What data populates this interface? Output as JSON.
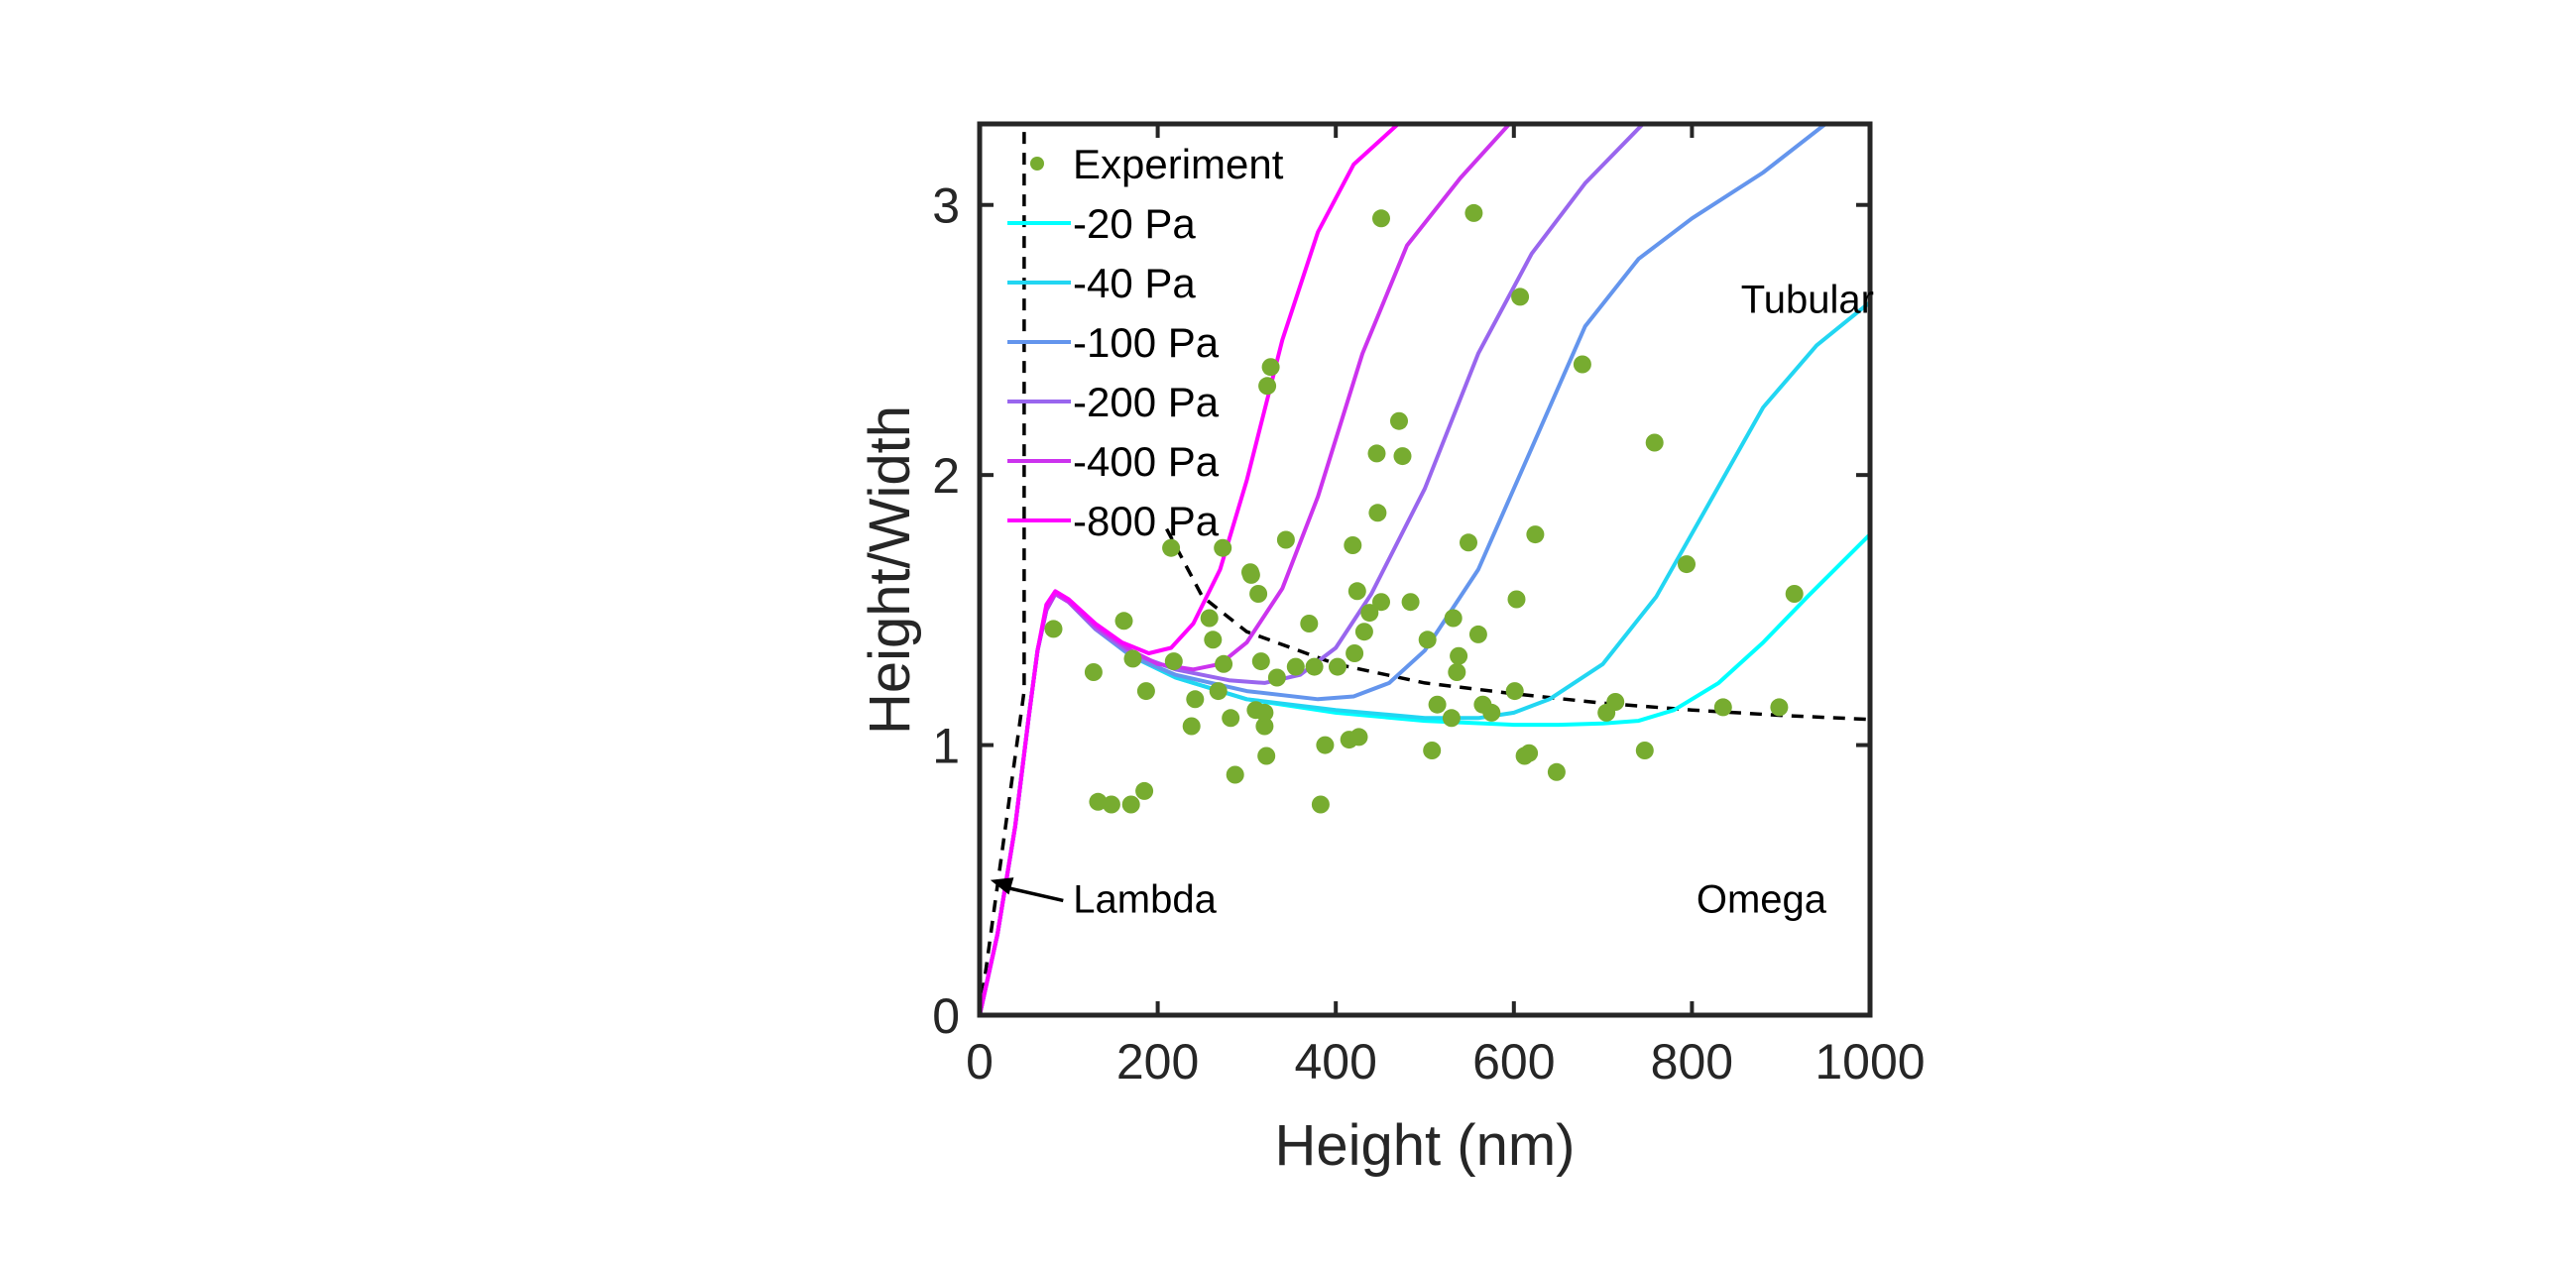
{
  "chart_data": {
    "type": "scatter",
    "xlabel": "Height (nm)",
    "ylabel": "Height/Width",
    "xlim": [
      0,
      1000
    ],
    "ylim": [
      0,
      3.3
    ],
    "xticks": [
      0,
      200,
      400,
      600,
      800,
      1000
    ],
    "xtick_labels": [
      "0",
      "200",
      "400",
      "600",
      "800",
      "1000"
    ],
    "yticks": [
      0,
      1,
      2,
      3
    ],
    "ytick_labels": [
      "0",
      "1",
      "2",
      "3"
    ],
    "grid": false,
    "legend": {
      "position": "top-left",
      "entries": [
        "Experiment",
        "-20 Pa",
        "-40 Pa",
        "-100 Pa",
        "-200 Pa",
        "-400 Pa",
        "-800 Pa"
      ]
    },
    "series": [
      {
        "name": "Experiment",
        "kind": "scatter",
        "color": "#77ac30",
        "points": [
          [
            83,
            1.43
          ],
          [
            128,
            1.27
          ],
          [
            133,
            0.79
          ],
          [
            148,
            0.78
          ],
          [
            162,
            1.46
          ],
          [
            170,
            0.78
          ],
          [
            172,
            1.32
          ],
          [
            185,
            0.83
          ],
          [
            187,
            1.2
          ],
          [
            215,
            1.73
          ],
          [
            218,
            1.31
          ],
          [
            238,
            1.07
          ],
          [
            242,
            1.17
          ],
          [
            258,
            1.47
          ],
          [
            262,
            1.39
          ],
          [
            268,
            1.2
          ],
          [
            273,
            1.73
          ],
          [
            274,
            1.3
          ],
          [
            282,
            1.1
          ],
          [
            287,
            0.89
          ],
          [
            304,
            1.64
          ],
          [
            305,
            1.63
          ],
          [
            310,
            1.13
          ],
          [
            313,
            1.56
          ],
          [
            316,
            1.31
          ],
          [
            320,
            1.07
          ],
          [
            320,
            1.12
          ],
          [
            322,
            0.96
          ],
          [
            323,
            2.33
          ],
          [
            327,
            2.4
          ],
          [
            334,
            1.25
          ],
          [
            344,
            1.76
          ],
          [
            355,
            1.29
          ],
          [
            370,
            1.45
          ],
          [
            376,
            1.29
          ],
          [
            383,
            0.78
          ],
          [
            388,
            1.0
          ],
          [
            402,
            1.29
          ],
          [
            415,
            1.02
          ],
          [
            419,
            1.74
          ],
          [
            421,
            1.34
          ],
          [
            424,
            1.57
          ],
          [
            426,
            1.03
          ],
          [
            432,
            1.42
          ],
          [
            438,
            1.49
          ],
          [
            446,
            2.08
          ],
          [
            447,
            1.86
          ],
          [
            451,
            1.53
          ],
          [
            451,
            2.95
          ],
          [
            471,
            2.2
          ],
          [
            475,
            2.07
          ],
          [
            484,
            1.53
          ],
          [
            503,
            1.39
          ],
          [
            508,
            0.98
          ],
          [
            514,
            1.15
          ],
          [
            530,
            1.1
          ],
          [
            532,
            1.47
          ],
          [
            536,
            1.27
          ],
          [
            538,
            1.33
          ],
          [
            549,
            1.75
          ],
          [
            555,
            2.97
          ],
          [
            560,
            1.41
          ],
          [
            565,
            1.15
          ],
          [
            575,
            1.12
          ],
          [
            601,
            1.2
          ],
          [
            603,
            1.54
          ],
          [
            607,
            2.66
          ],
          [
            612,
            0.96
          ],
          [
            617,
            0.97
          ],
          [
            624,
            1.78
          ],
          [
            648,
            0.9
          ],
          [
            677,
            2.41
          ],
          [
            704,
            1.12
          ],
          [
            714,
            1.16
          ],
          [
            747,
            0.98
          ],
          [
            758,
            2.12
          ],
          [
            794,
            1.67
          ],
          [
            835,
            1.14
          ],
          [
            898,
            1.14
          ],
          [
            915,
            1.56
          ]
        ]
      },
      {
        "name": "-20 Pa",
        "kind": "line",
        "color": "#00ffff",
        "points": [
          [
            0,
            0
          ],
          [
            20,
            0.3
          ],
          [
            40,
            0.7
          ],
          [
            55,
            1.1
          ],
          [
            65,
            1.35
          ],
          [
            75,
            1.5
          ],
          [
            85,
            1.56
          ],
          [
            100,
            1.53
          ],
          [
            130,
            1.43
          ],
          [
            170,
            1.33
          ],
          [
            220,
            1.25
          ],
          [
            300,
            1.17
          ],
          [
            400,
            1.12
          ],
          [
            500,
            1.09
          ],
          [
            600,
            1.075
          ],
          [
            650,
            1.075
          ],
          [
            700,
            1.08
          ],
          [
            740,
            1.09
          ],
          [
            780,
            1.13
          ],
          [
            830,
            1.23
          ],
          [
            880,
            1.38
          ],
          [
            930,
            1.55
          ],
          [
            1000,
            1.78
          ]
        ]
      },
      {
        "name": "-40 Pa",
        "kind": "line",
        "color": "#22d6f2",
        "points": [
          [
            0,
            0
          ],
          [
            20,
            0.3
          ],
          [
            40,
            0.7
          ],
          [
            55,
            1.1
          ],
          [
            65,
            1.35
          ],
          [
            75,
            1.5
          ],
          [
            85,
            1.56
          ],
          [
            100,
            1.53
          ],
          [
            130,
            1.43
          ],
          [
            170,
            1.33
          ],
          [
            220,
            1.25
          ],
          [
            300,
            1.17
          ],
          [
            400,
            1.13
          ],
          [
            500,
            1.1
          ],
          [
            560,
            1.1
          ],
          [
            600,
            1.12
          ],
          [
            640,
            1.17
          ],
          [
            700,
            1.3
          ],
          [
            760,
            1.55
          ],
          [
            820,
            1.9
          ],
          [
            880,
            2.25
          ],
          [
            940,
            2.48
          ],
          [
            1000,
            2.64
          ]
        ]
      },
      {
        "name": "-100 Pa",
        "kind": "line",
        "color": "#6495ed",
        "points": [
          [
            0,
            0
          ],
          [
            20,
            0.3
          ],
          [
            40,
            0.7
          ],
          [
            55,
            1.1
          ],
          [
            65,
            1.35
          ],
          [
            75,
            1.5
          ],
          [
            85,
            1.56
          ],
          [
            100,
            1.53
          ],
          [
            130,
            1.43
          ],
          [
            170,
            1.33
          ],
          [
            220,
            1.26
          ],
          [
            300,
            1.2
          ],
          [
            380,
            1.17
          ],
          [
            420,
            1.18
          ],
          [
            460,
            1.23
          ],
          [
            500,
            1.35
          ],
          [
            560,
            1.65
          ],
          [
            620,
            2.1
          ],
          [
            680,
            2.55
          ],
          [
            740,
            2.8
          ],
          [
            800,
            2.95
          ],
          [
            880,
            3.12
          ],
          [
            950,
            3.3
          ]
        ]
      },
      {
        "name": "-200 Pa",
        "kind": "line",
        "color": "#9966ee",
        "points": [
          [
            0,
            0
          ],
          [
            20,
            0.3
          ],
          [
            40,
            0.7
          ],
          [
            55,
            1.1
          ],
          [
            65,
            1.35
          ],
          [
            75,
            1.5
          ],
          [
            85,
            1.56
          ],
          [
            100,
            1.53
          ],
          [
            130,
            1.43
          ],
          [
            170,
            1.34
          ],
          [
            220,
            1.28
          ],
          [
            280,
            1.24
          ],
          [
            320,
            1.23
          ],
          [
            360,
            1.26
          ],
          [
            400,
            1.36
          ],
          [
            440,
            1.56
          ],
          [
            500,
            1.95
          ],
          [
            560,
            2.45
          ],
          [
            620,
            2.82
          ],
          [
            680,
            3.08
          ],
          [
            745,
            3.3
          ]
        ]
      },
      {
        "name": "-400 Pa",
        "kind": "line",
        "color": "#cc33ee",
        "points": [
          [
            0,
            0
          ],
          [
            20,
            0.3
          ],
          [
            40,
            0.7
          ],
          [
            55,
            1.1
          ],
          [
            65,
            1.35
          ],
          [
            75,
            1.5
          ],
          [
            85,
            1.56
          ],
          [
            100,
            1.53
          ],
          [
            130,
            1.44
          ],
          [
            170,
            1.35
          ],
          [
            200,
            1.3
          ],
          [
            240,
            1.28
          ],
          [
            270,
            1.3
          ],
          [
            300,
            1.38
          ],
          [
            340,
            1.58
          ],
          [
            380,
            1.92
          ],
          [
            430,
            2.45
          ],
          [
            480,
            2.85
          ],
          [
            540,
            3.1
          ],
          [
            595,
            3.3
          ]
        ]
      },
      {
        "name": "-800 Pa",
        "kind": "line",
        "color": "#ff00ff",
        "points": [
          [
            0,
            0
          ],
          [
            20,
            0.3
          ],
          [
            40,
            0.7
          ],
          [
            55,
            1.1
          ],
          [
            65,
            1.35
          ],
          [
            75,
            1.52
          ],
          [
            85,
            1.57
          ],
          [
            100,
            1.54
          ],
          [
            130,
            1.45
          ],
          [
            160,
            1.38
          ],
          [
            190,
            1.34
          ],
          [
            215,
            1.36
          ],
          [
            240,
            1.45
          ],
          [
            270,
            1.65
          ],
          [
            300,
            1.98
          ],
          [
            340,
            2.5
          ],
          [
            380,
            2.9
          ],
          [
            420,
            3.15
          ],
          [
            470,
            3.3
          ]
        ]
      },
      {
        "name": "Lambda boundary",
        "kind": "dashed-line",
        "color": "#000000",
        "points": [
          [
            0,
            0
          ],
          [
            50,
            1.2
          ],
          [
            50,
            3.3
          ]
        ]
      },
      {
        "name": "Omega/Tubular boundary",
        "kind": "dashed-line",
        "color": "#000000",
        "points": [
          [
            210,
            1.8
          ],
          [
            250,
            1.55
          ],
          [
            300,
            1.42
          ],
          [
            400,
            1.3
          ],
          [
            500,
            1.23
          ],
          [
            600,
            1.19
          ],
          [
            700,
            1.155
          ],
          [
            800,
            1.13
          ],
          [
            900,
            1.11
          ],
          [
            1000,
            1.095
          ]
        ]
      }
    ],
    "annotations": [
      {
        "text": "Tubular",
        "x": 855,
        "y": 2.6
      },
      {
        "text": "Omega",
        "x": 805,
        "y": 0.38
      },
      {
        "text": "Lambda",
        "x": 105,
        "y": 0.38,
        "arrow_to": [
          12,
          0.5
        ]
      }
    ]
  }
}
